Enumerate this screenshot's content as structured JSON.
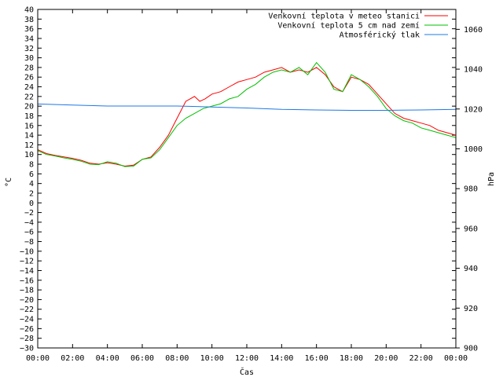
{
  "chart_data": {
    "type": "line",
    "title": "",
    "xlabel": "Čas",
    "ylabel": "°C",
    "y2label": "hPa",
    "xlim": [
      0,
      24
    ],
    "ylim": [
      -30,
      40
    ],
    "y2lim": [
      900,
      1070
    ],
    "x_ticks": [
      "00:00",
      "02:00",
      "04:00",
      "06:00",
      "08:00",
      "10:00",
      "12:00",
      "14:00",
      "16:00",
      "18:00",
      "20:00",
      "22:00",
      "00:00"
    ],
    "y_ticks": [
      -30,
      -28,
      -26,
      -24,
      -22,
      -20,
      -18,
      -16,
      -14,
      -12,
      -10,
      -8,
      -6,
      -4,
      -2,
      0,
      2,
      4,
      6,
      8,
      10,
      12,
      14,
      16,
      18,
      20,
      22,
      24,
      26,
      28,
      30,
      32,
      34,
      36,
      38,
      40
    ],
    "y2_ticks": [
      900,
      920,
      940,
      960,
      980,
      1000,
      1020,
      1040,
      1060
    ],
    "grid": false,
    "legend_position": "top-right",
    "series": [
      {
        "name": "Venkovní teplota v meteo stanici",
        "color": "#ff0000",
        "axis": "left",
        "points": [
          [
            0,
            11
          ],
          [
            0.5,
            10.2
          ],
          [
            1,
            9.8
          ],
          [
            1.5,
            9.5
          ],
          [
            2,
            9.2
          ],
          [
            2.5,
            8.8
          ],
          [
            3,
            8.2
          ],
          [
            3.5,
            8.0
          ],
          [
            4,
            8.3
          ],
          [
            4.5,
            8.0
          ],
          [
            5,
            7.6
          ],
          [
            5.5,
            7.8
          ],
          [
            6,
            9.0
          ],
          [
            6.5,
            9.5
          ],
          [
            7,
            11.5
          ],
          [
            7.5,
            14.0
          ],
          [
            8,
            17.5
          ],
          [
            8.5,
            21.0
          ],
          [
            9,
            22.0
          ],
          [
            9.3,
            21.0
          ],
          [
            9.6,
            21.5
          ],
          [
            10,
            22.5
          ],
          [
            10.5,
            23.0
          ],
          [
            11,
            24.0
          ],
          [
            11.5,
            25.0
          ],
          [
            12,
            25.5
          ],
          [
            12.5,
            26.0
          ],
          [
            13,
            27.0
          ],
          [
            13.5,
            27.5
          ],
          [
            14,
            28.0
          ],
          [
            14.5,
            27.0
          ],
          [
            15,
            27.5
          ],
          [
            15.5,
            27.0
          ],
          [
            16,
            28.0
          ],
          [
            16.5,
            26.5
          ],
          [
            17,
            24.0
          ],
          [
            17.5,
            23.0
          ],
          [
            18,
            26.0
          ],
          [
            18.5,
            25.5
          ],
          [
            19,
            24.5
          ],
          [
            19.5,
            22.5
          ],
          [
            20,
            20.5
          ],
          [
            20.5,
            18.5
          ],
          [
            21,
            17.5
          ],
          [
            21.5,
            17.0
          ],
          [
            22,
            16.5
          ],
          [
            22.5,
            16.0
          ],
          [
            23,
            15.0
          ],
          [
            23.5,
            14.5
          ],
          [
            24,
            14.0
          ]
        ]
      },
      {
        "name": "Venkovní teplota 5 cm nad zemí",
        "color": "#00c000",
        "axis": "left",
        "points": [
          [
            0,
            10.8
          ],
          [
            0.5,
            10.0
          ],
          [
            1,
            9.7
          ],
          [
            1.5,
            9.3
          ],
          [
            2,
            9.0
          ],
          [
            2.5,
            8.6
          ],
          [
            3,
            8.0
          ],
          [
            3.5,
            7.9
          ],
          [
            4,
            8.5
          ],
          [
            4.5,
            8.2
          ],
          [
            5,
            7.5
          ],
          [
            5.5,
            7.6
          ],
          [
            6,
            9.0
          ],
          [
            6.5,
            9.3
          ],
          [
            7,
            11.0
          ],
          [
            7.5,
            13.5
          ],
          [
            8,
            16.0
          ],
          [
            8.5,
            17.5
          ],
          [
            9,
            18.5
          ],
          [
            9.5,
            19.5
          ],
          [
            10,
            20.0
          ],
          [
            10.5,
            20.5
          ],
          [
            11,
            21.5
          ],
          [
            11.5,
            22.0
          ],
          [
            12,
            23.5
          ],
          [
            12.5,
            24.5
          ],
          [
            13,
            26.0
          ],
          [
            13.5,
            27.0
          ],
          [
            14,
            27.5
          ],
          [
            14.5,
            27.0
          ],
          [
            15,
            28.0
          ],
          [
            15.5,
            26.5
          ],
          [
            16,
            29.0
          ],
          [
            16.5,
            27.0
          ],
          [
            17,
            23.5
          ],
          [
            17.5,
            23.0
          ],
          [
            18,
            26.5
          ],
          [
            18.5,
            25.5
          ],
          [
            19,
            24.0
          ],
          [
            19.5,
            22.0
          ],
          [
            20,
            19.5
          ],
          [
            20.5,
            18.0
          ],
          [
            21,
            17.0
          ],
          [
            21.5,
            16.5
          ],
          [
            22,
            15.5
          ],
          [
            22.5,
            15.0
          ],
          [
            23,
            14.5
          ],
          [
            23.5,
            14.0
          ],
          [
            24,
            13.5
          ]
        ]
      },
      {
        "name": "Atmosférický tlak",
        "color": "#1e78e6",
        "axis": "right",
        "points": [
          [
            0,
            1022.5
          ],
          [
            2,
            1022.0
          ],
          [
            4,
            1021.5
          ],
          [
            6,
            1021.5
          ],
          [
            8,
            1021.5
          ],
          [
            10,
            1021.0
          ],
          [
            12,
            1020.5
          ],
          [
            14,
            1019.8
          ],
          [
            16,
            1019.5
          ],
          [
            18,
            1019.3
          ],
          [
            20,
            1019.3
          ],
          [
            22,
            1019.5
          ],
          [
            24,
            1019.8
          ]
        ]
      }
    ]
  }
}
